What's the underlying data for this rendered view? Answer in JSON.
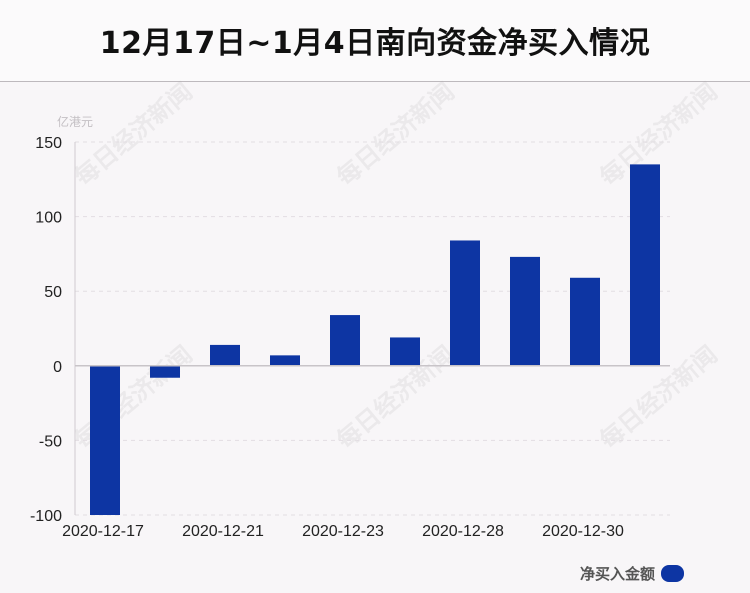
{
  "header": {
    "title": "12月17日~1月4日南向资金净买入情况"
  },
  "unit_label": "亿港元",
  "watermark_text": "每日经济新闻",
  "legend": {
    "label": "净买入金额",
    "color": "#0d35a3"
  },
  "chart_data": {
    "type": "bar",
    "categories": [
      "2020-12-17",
      "",
      "2020-12-21",
      "",
      "2020-12-23",
      "",
      "2020-12-28",
      "",
      "2020-12-30",
      ""
    ],
    "series": [
      {
        "name": "净买入金额",
        "values": [
          -100,
          -8,
          14,
          7,
          34,
          19,
          84,
          73,
          59,
          135
        ]
      }
    ],
    "yticks": [
      150,
      100,
      50,
      0,
      -50,
      -100
    ],
    "ylim": [
      -100,
      150
    ],
    "bar_color": "#0d35a3",
    "grid": true
  }
}
